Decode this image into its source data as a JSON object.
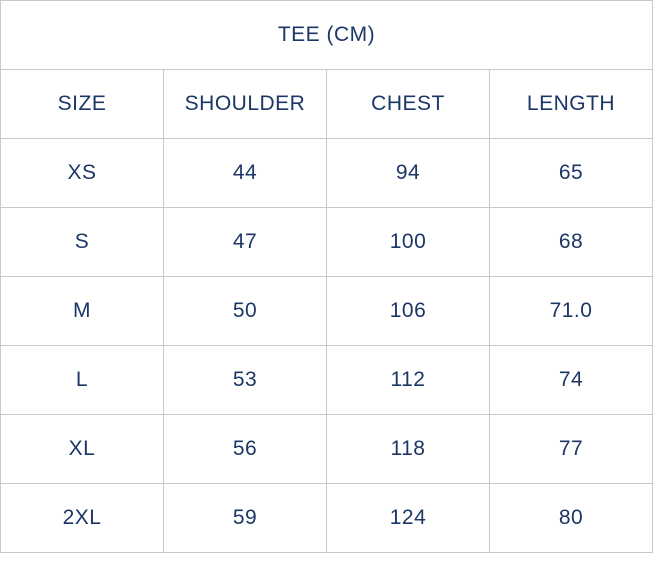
{
  "colors": {
    "text_navy": "#1c3766",
    "border_gray": "#c9c9c9",
    "background": "#ffffff"
  },
  "chart_data": {
    "type": "table",
    "title": "TEE (CM)",
    "columns": [
      "SIZE",
      "SHOULDER",
      "CHEST",
      "LENGTH"
    ],
    "rows": [
      [
        "XS",
        "44",
        "94",
        "65"
      ],
      [
        "S",
        "47",
        "100",
        "68"
      ],
      [
        "M",
        "50",
        "106",
        "71.0"
      ],
      [
        "L",
        "53",
        "112",
        "74"
      ],
      [
        "XL",
        "56",
        "118",
        "77"
      ],
      [
        "2XL",
        "59",
        "124",
        "80"
      ]
    ]
  }
}
